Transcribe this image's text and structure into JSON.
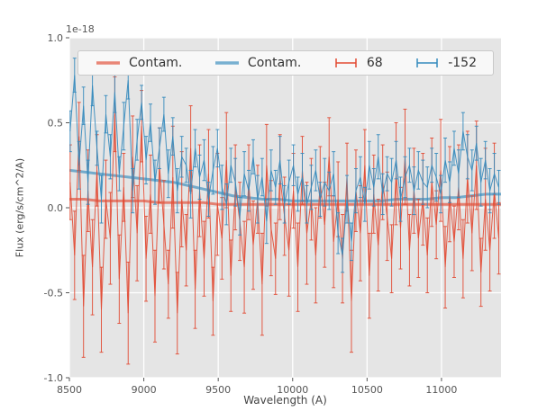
{
  "chart_data": {
    "type": "line",
    "title": "",
    "xlabel": "Wavelength (A)",
    "ylabel": "Flux (erg/s/cm^2/A)",
    "offset_text": "1e-18",
    "xlim": [
      8500,
      11400
    ],
    "ylim": [
      -1.0,
      1.0
    ],
    "x_ticks": [
      8500,
      9000,
      9500,
      10000,
      10500,
      11000
    ],
    "y_ticks": [
      -1.0,
      -0.5,
      0.0,
      0.5,
      1.0
    ],
    "grid": true,
    "plot_bg": "#e5e5e5",
    "grid_color": "#ffffff",
    "legend": {
      "position": "upper center horizontal",
      "entries": [
        {
          "label": "Contam.",
          "color": "#E24A33",
          "glyph": "line"
        },
        {
          "label": "Contam.",
          "color": "#348ABD",
          "glyph": "line"
        },
        {
          "label": "68",
          "color": "#E24A33",
          "glyph": "errorbar"
        },
        {
          "label": "-152",
          "color": "#348ABD",
          "glyph": "errorbar"
        }
      ]
    },
    "x_smooth": [
      8500,
      8600,
      8700,
      8800,
      8900,
      9000,
      9100,
      9200,
      9300,
      9400,
      9500,
      9600,
      9700,
      9800,
      9900,
      10000,
      10100,
      10200,
      10300,
      10400,
      10500,
      10600,
      10700,
      10800,
      10900,
      11000,
      11100,
      11200,
      11300,
      11400
    ],
    "x_errorbar": [
      8505,
      8535,
      8565,
      8595,
      8625,
      8655,
      8685,
      8715,
      8745,
      8775,
      8805,
      8835,
      8865,
      8895,
      8925,
      8955,
      8985,
      9015,
      9045,
      9075,
      9105,
      9135,
      9165,
      9195,
      9225,
      9255,
      9285,
      9315,
      9345,
      9375,
      9405,
      9435,
      9465,
      9495,
      9525,
      9555,
      9585,
      9615,
      9645,
      9675,
      9705,
      9735,
      9765,
      9795,
      9825,
      9855,
      9885,
      9915,
      9945,
      9975,
      10005,
      10035,
      10065,
      10095,
      10125,
      10155,
      10185,
      10215,
      10245,
      10275,
      10305,
      10335,
      10365,
      10395,
      10425,
      10455,
      10485,
      10515,
      10545,
      10575,
      10605,
      10635,
      10665,
      10695,
      10725,
      10755,
      10785,
      10815,
      10845,
      10875,
      10905,
      10935,
      10965,
      10995,
      11025,
      11055,
      11085,
      11115,
      11145,
      11175,
      11205,
      11235,
      11265,
      11295,
      11325,
      11355,
      11385
    ],
    "series": [
      {
        "name": "Contam.",
        "type": "line",
        "color": "#E24A33",
        "x_key": "x_smooth",
        "y": [
          0.05,
          0.05,
          0.04,
          0.04,
          0.04,
          0.04,
          0.03,
          0.03,
          0.03,
          0.03,
          0.02,
          0.02,
          0.02,
          0.02,
          0.02,
          0.02,
          0.02,
          0.02,
          0.02,
          0.02,
          0.02,
          0.02,
          0.02,
          0.02,
          0.02,
          0.02,
          0.02,
          0.02,
          0.02,
          0.02
        ]
      },
      {
        "name": "Contam.",
        "type": "line",
        "color": "#348ABD",
        "x_key": "x_smooth",
        "y": [
          0.22,
          0.21,
          0.2,
          0.19,
          0.18,
          0.17,
          0.16,
          0.15,
          0.13,
          0.11,
          0.09,
          0.07,
          0.06,
          0.05,
          0.05,
          0.04,
          0.04,
          0.04,
          0.04,
          0.04,
          0.04,
          0.04,
          0.05,
          0.05,
          0.05,
          0.06,
          0.06,
          0.07,
          0.08,
          0.08
        ]
      },
      {
        "name": "68",
        "type": "errorbar",
        "color": "#E24A33",
        "x_key": "x_errorbar",
        "y": [
          0.15,
          -0.28,
          0.42,
          -0.58,
          0.1,
          -0.35,
          0.22,
          -0.6,
          0.05,
          -0.18,
          0.55,
          -0.42,
          0.12,
          -0.62,
          0.3,
          -0.15,
          0.48,
          -0.3,
          0.08,
          -0.52,
          0.25,
          -0.1,
          -0.45,
          0.18,
          -0.62,
          0.05,
          -0.25,
          0.35,
          -0.48,
          0.1,
          -0.3,
          0.2,
          -0.55,
          0.02,
          -0.18,
          0.28,
          -0.4,
          0.12,
          -0.08,
          -0.35,
          0.15,
          -0.22,
          0.05,
          -0.45,
          0.25,
          -0.12,
          -0.3,
          0.18,
          -0.05,
          -0.25,
          0.1,
          -0.35,
          0.22,
          -0.15,
          0.05,
          -0.28,
          0.15,
          -0.1,
          0.3,
          -0.2,
          0.05,
          -0.3,
          0.18,
          -0.55,
          0.1,
          -0.15,
          0.25,
          -0.4,
          0.08,
          -0.22,
          0.15,
          -0.05,
          -0.3,
          0.2,
          -0.12,
          0.3,
          -0.25,
          0.1,
          -0.18,
          0.05,
          -0.28,
          0.15,
          -0.1,
          0.22,
          -0.35,
          0.08,
          -0.2,
          0.12,
          -0.3,
          0.18,
          -0.15,
          0.25,
          -0.38,
          0.05,
          -0.25,
          0.1,
          -0.18
        ],
        "yerr": [
          0.22,
          0.26,
          0.2,
          0.3,
          0.24,
          0.28,
          0.21,
          0.25,
          0.23,
          0.27,
          0.22,
          0.26,
          0.2,
          0.3,
          0.24,
          0.28,
          0.21,
          0.25,
          0.23,
          0.27,
          0.22,
          0.26,
          0.2,
          0.3,
          0.24,
          0.28,
          0.21,
          0.25,
          0.23,
          0.27,
          0.22,
          0.26,
          0.2,
          0.3,
          0.24,
          0.28,
          0.21,
          0.25,
          0.23,
          0.27,
          0.22,
          0.26,
          0.2,
          0.3,
          0.24,
          0.28,
          0.21,
          0.25,
          0.23,
          0.27,
          0.22,
          0.26,
          0.2,
          0.3,
          0.24,
          0.28,
          0.21,
          0.25,
          0.23,
          0.27,
          0.22,
          0.26,
          0.2,
          0.3,
          0.24,
          0.28,
          0.21,
          0.25,
          0.23,
          0.27,
          0.22,
          0.26,
          0.2,
          0.3,
          0.24,
          0.28,
          0.21,
          0.25,
          0.23,
          0.27,
          0.22,
          0.26,
          0.2,
          0.3,
          0.24,
          0.28,
          0.21,
          0.25,
          0.23,
          0.27,
          0.22,
          0.26,
          0.2,
          0.3,
          0.24,
          0.28,
          0.21
        ]
      },
      {
        "name": "-152",
        "type": "errorbar",
        "color": "#348ABD",
        "x_key": "x_errorbar",
        "y": [
          0.45,
          0.78,
          0.25,
          0.6,
          0.15,
          0.72,
          0.35,
          0.05,
          0.55,
          0.3,
          0.68,
          0.2,
          0.48,
          0.75,
          0.1,
          0.4,
          0.62,
          0.28,
          0.5,
          0.15,
          0.35,
          0.55,
          0.2,
          0.42,
          0.1,
          0.3,
          0.25,
          0.08,
          0.35,
          0.18,
          0.28,
          0.05,
          0.22,
          0.35,
          0.12,
          0.02,
          0.25,
          0.15,
          -0.05,
          0.2,
          0.1,
          0.3,
          0.05,
          0.18,
          -0.08,
          0.22,
          0.12,
          0.28,
          0.02,
          0.15,
          0.25,
          0.08,
          0.18,
          0.02,
          0.12,
          0.22,
          0.05,
          0.15,
          0.1,
          0.2,
          -0.15,
          -0.28,
          0.05,
          -0.2,
          0.1,
          0.18,
          0.02,
          0.25,
          0.12,
          0.3,
          0.08,
          0.2,
          0.15,
          0.28,
          0.05,
          0.18,
          0.25,
          0.1,
          0.22,
          0.15,
          0.12,
          0.25,
          0.18,
          0.08,
          0.28,
          0.15,
          0.35,
          0.2,
          0.45,
          0.3,
          0.22,
          0.38,
          0.15,
          0.28,
          0.1,
          0.2,
          0.12
        ],
        "yerr": [
          0.12,
          0.1,
          0.14,
          0.11,
          0.13,
          0.12,
          0.1,
          0.14,
          0.11,
          0.13,
          0.12,
          0.1,
          0.14,
          0.11,
          0.13,
          0.12,
          0.1,
          0.14,
          0.11,
          0.13,
          0.12,
          0.1,
          0.14,
          0.11,
          0.13,
          0.12,
          0.1,
          0.14,
          0.11,
          0.13,
          0.12,
          0.1,
          0.14,
          0.11,
          0.13,
          0.12,
          0.1,
          0.14,
          0.11,
          0.13,
          0.12,
          0.1,
          0.14,
          0.11,
          0.13,
          0.12,
          0.1,
          0.14,
          0.11,
          0.13,
          0.12,
          0.1,
          0.14,
          0.11,
          0.13,
          0.12,
          0.1,
          0.14,
          0.11,
          0.13,
          0.12,
          0.1,
          0.14,
          0.11,
          0.13,
          0.12,
          0.1,
          0.14,
          0.11,
          0.13,
          0.12,
          0.1,
          0.14,
          0.11,
          0.13,
          0.12,
          0.1,
          0.14,
          0.11,
          0.13,
          0.12,
          0.1,
          0.14,
          0.11,
          0.13,
          0.12,
          0.1,
          0.14,
          0.11,
          0.13,
          0.12,
          0.1,
          0.14,
          0.11,
          0.13,
          0.12,
          0.1
        ]
      }
    ]
  }
}
